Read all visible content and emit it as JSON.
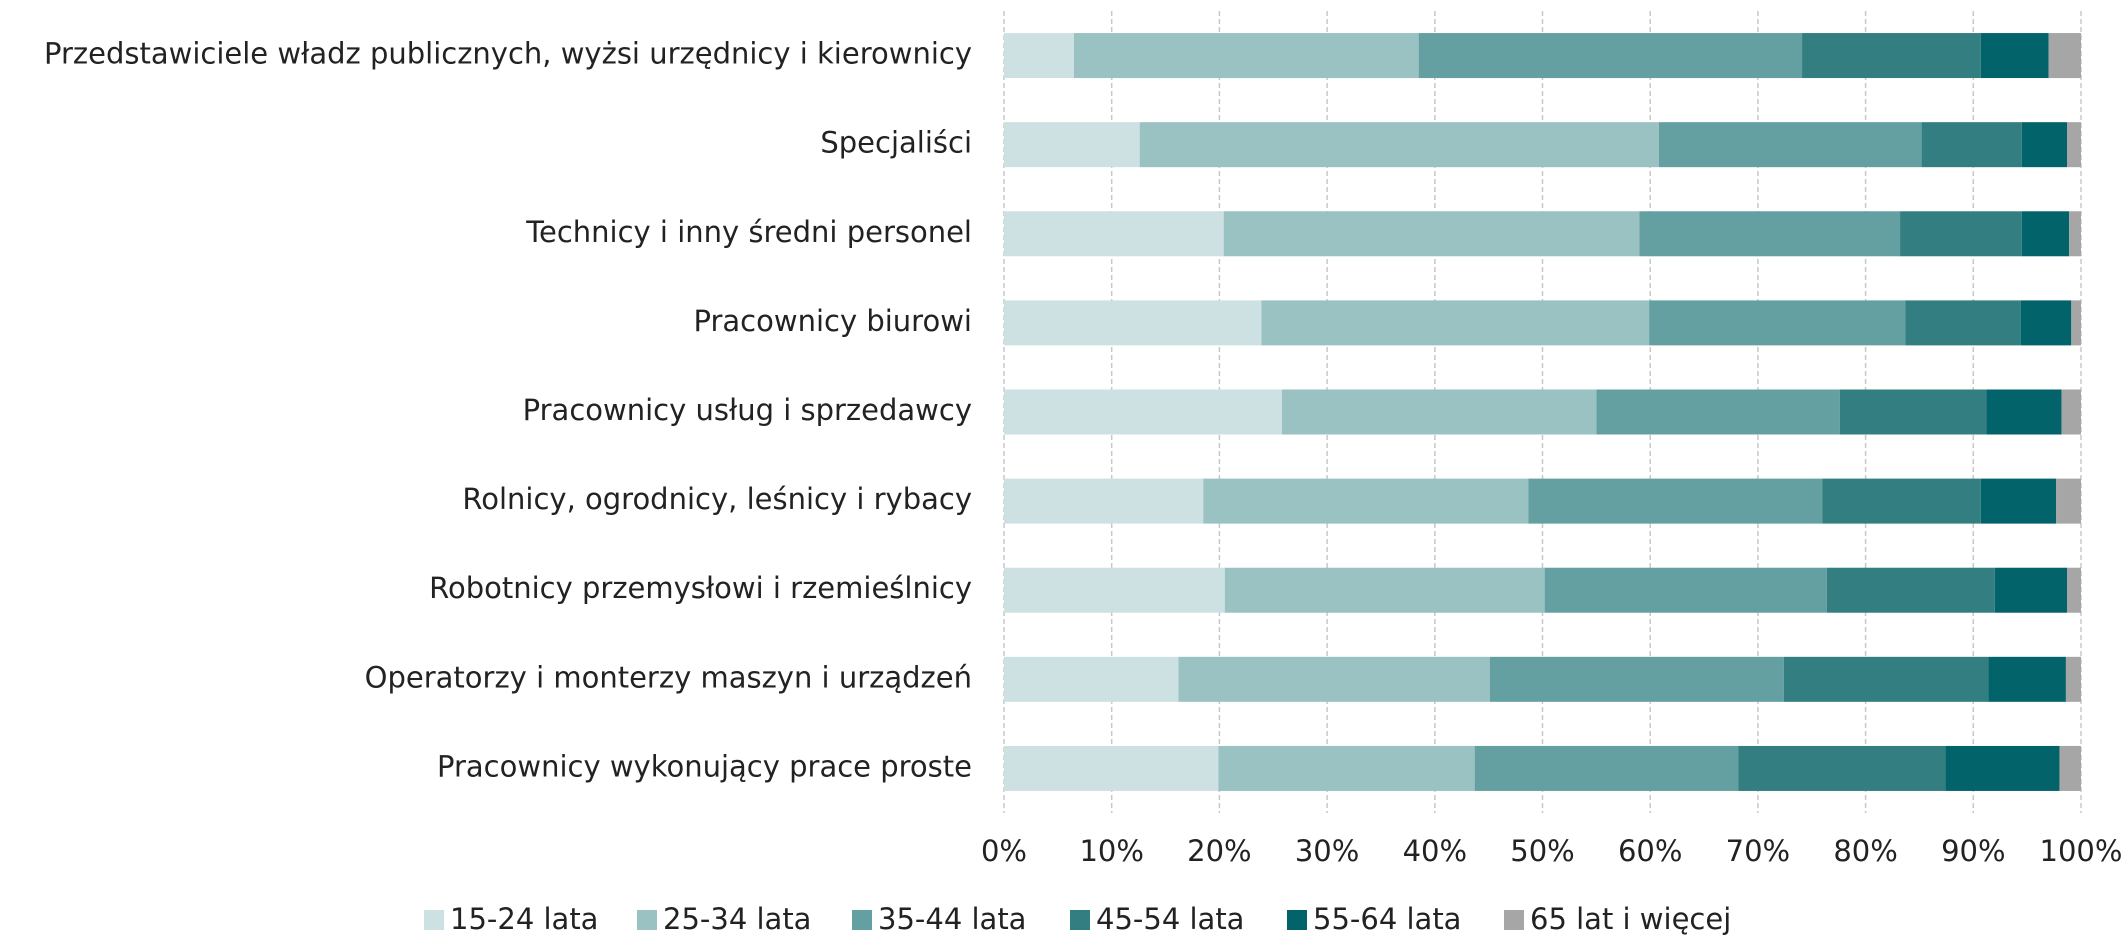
{
  "chart_data": {
    "type": "stacked_barh",
    "categories": [
      "Przedstawiciele władz publicznych, wyżsi urzędnicy i kierownicy",
      "Specjaliści",
      "Technicy i inny średni personel",
      "Pracownicy biurowi",
      "Pracownicy usług i sprzedawcy",
      "Rolnicy, ogrodnicy, leśnicy i rybacy",
      "Robotnicy przemysłowi i rzemieślnicy",
      "Operatorzy i monterzy maszyn i urządzeń",
      "Pracownicy wykonujący prace proste"
    ],
    "series": [
      {
        "name": "15-24 lata",
        "color": "#cde0e2",
        "values": [
          6.5,
          12.6,
          20.4,
          23.9,
          25.8,
          18.5,
          20.5,
          16.2,
          19.9
        ]
      },
      {
        "name": "25-34 lata",
        "color": "#9bc2c3",
        "values": [
          32.0,
          48.2,
          38.6,
          36.0,
          29.2,
          30.2,
          29.7,
          28.9,
          23.8
        ]
      },
      {
        "name": "35-44 lata",
        "color": "#64a0a2",
        "values": [
          35.6,
          24.4,
          24.2,
          23.8,
          22.6,
          27.3,
          26.2,
          27.3,
          24.5
        ]
      },
      {
        "name": "45-54 lata",
        "color": "#337e80",
        "values": [
          16.6,
          9.3,
          11.3,
          10.7,
          13.6,
          14.7,
          15.6,
          19.0,
          19.2
        ]
      },
      {
        "name": "55-64 lata",
        "color": "#03636a",
        "values": [
          6.3,
          4.2,
          4.4,
          4.7,
          7.0,
          7.0,
          6.7,
          7.2,
          10.6
        ]
      },
      {
        "name": "65 lat i więcej",
        "color": "#a6a6a6",
        "values": [
          3.0,
          1.3,
          1.1,
          0.9,
          1.8,
          2.3,
          1.3,
          1.4,
          2.0
        ]
      }
    ],
    "xlim": [
      0,
      100
    ],
    "xticks": [
      {
        "value": 0,
        "label": "0%"
      },
      {
        "value": 10,
        "label": "10%"
      },
      {
        "value": 20,
        "label": "20%"
      },
      {
        "value": 30,
        "label": "30%"
      },
      {
        "value": 40,
        "label": "40%"
      },
      {
        "value": 50,
        "label": "50%"
      },
      {
        "value": 60,
        "label": "60%"
      },
      {
        "value": 70,
        "label": "70%"
      },
      {
        "value": 80,
        "label": "80%"
      },
      {
        "value": 90,
        "label": "90%"
      },
      {
        "value": 100,
        "label": "100%"
      }
    ],
    "grid": true,
    "legend": "bottom"
  }
}
